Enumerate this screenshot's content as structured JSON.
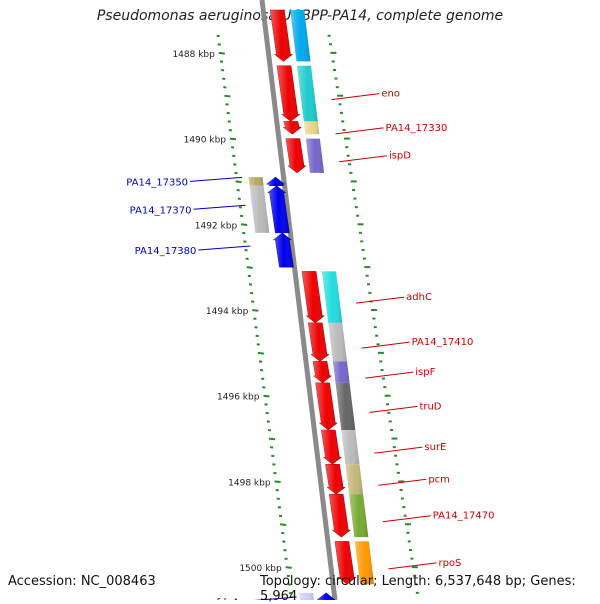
{
  "title": "Pseudomonas aeruginosa UCBPP-PA14, complete genome",
  "footer": {
    "accession": "Accession: NC_008463",
    "topology": "Topology: circular; Length: 6,537,648 bp; Genes: 5,964"
  },
  "colors": {
    "backbone": "#8a8a8a",
    "tick_marks": "#2a8a2a",
    "forward_label": "#cc0000",
    "reverse_label": "#0000cc"
  },
  "chart_data": {
    "type": "genome-map",
    "axis_unit": "kbp",
    "axis_range": [
      1487,
      1501
    ],
    "tick_labels": [
      {
        "kbp": 1488,
        "label": "1488 kbp"
      },
      {
        "kbp": 1490,
        "label": "1490 kbp"
      },
      {
        "kbp": 1492,
        "label": "1492 kbp"
      },
      {
        "kbp": 1494,
        "label": "1494 kbp"
      },
      {
        "kbp": 1496,
        "label": "1496 kbp"
      },
      {
        "kbp": 1498,
        "label": "1498 kbp"
      },
      {
        "kbp": 1500,
        "label": "1500 kbp"
      }
    ],
    "forward_genes": [
      {
        "name": "",
        "start": 1487.0,
        "end": 1488.2,
        "color": "#00aaee",
        "arrow": "#ee0000"
      },
      {
        "name": "eno",
        "start": 1488.3,
        "end": 1489.6,
        "color": "#22cccc",
        "arrow": "#ee0000"
      },
      {
        "name": "PA14_17330",
        "start": 1489.6,
        "end": 1489.9,
        "color": "#e6d888",
        "arrow": "#ee0000"
      },
      {
        "name": "ispD",
        "start": 1490.0,
        "end": 1490.8,
        "color": "#7766cc",
        "arrow": "#ee0000"
      },
      {
        "name": "adhC",
        "start": 1493.1,
        "end": 1494.3,
        "color": "#22dddd",
        "arrow": "#ee0000"
      },
      {
        "name": "PA14_17410",
        "start": 1494.3,
        "end": 1495.2,
        "color": "#bbbbbb",
        "arrow": "#ee0000"
      },
      {
        "name": "ispF",
        "start": 1495.2,
        "end": 1495.7,
        "color": "#7766cc",
        "arrow": "#ee0000"
      },
      {
        "name": "truD",
        "start": 1495.7,
        "end": 1496.8,
        "color": "#666666",
        "arrow": "#ee0000"
      },
      {
        "name": "surE",
        "start": 1496.8,
        "end": 1497.6,
        "color": "#bbbbbb",
        "arrow": "#ee0000"
      },
      {
        "name": "pcm",
        "start": 1497.6,
        "end": 1498.3,
        "color": "#c4b87a",
        "arrow": "#ee0000"
      },
      {
        "name": "PA14_17470",
        "start": 1498.3,
        "end": 1499.3,
        "color": "#77aa33",
        "arrow": "#ee0000"
      },
      {
        "name": "rpoS",
        "start": 1499.4,
        "end": 1500.4,
        "color": "#ff9900",
        "arrow": "#ee0000"
      }
    ],
    "reverse_genes": [
      {
        "name": "PA14_17350",
        "start": 1490.9,
        "end": 1491.1,
        "color": "#b8aa66",
        "arrow": "#0000ee"
      },
      {
        "name": "PA14_17370",
        "start": 1491.1,
        "end": 1492.2,
        "color": "#bbbbbb",
        "arrow": "#0000ee"
      },
      {
        "name": "PA14_17380",
        "start": 1492.2,
        "end": 1493.0,
        "color": "",
        "arrow": "#0000ee"
      },
      {
        "name": "fdxA",
        "start": 1500.6,
        "end": 1501.0,
        "color": "#ccccff",
        "arrow": "#0000ee"
      }
    ]
  }
}
